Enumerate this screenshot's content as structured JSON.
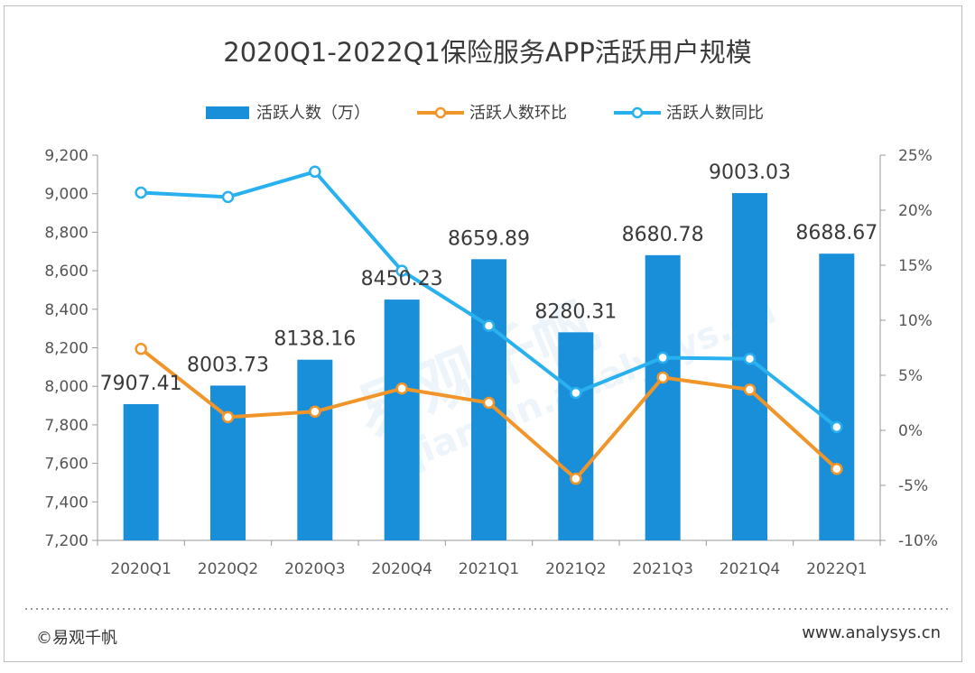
{
  "chart_data": {
    "type": "bar",
    "title": "2020Q1-2022Q1保险服务APP活跃用户规模",
    "categories": [
      "2020Q1",
      "2020Q2",
      "2020Q3",
      "2020Q4",
      "2021Q1",
      "2021Q2",
      "2021Q3",
      "2021Q4",
      "2022Q1"
    ],
    "bar_series": {
      "name": "活跃人数（万）",
      "values": [
        7907.41,
        8003.73,
        8138.16,
        8450.23,
        8659.89,
        8280.31,
        8680.78,
        9003.03,
        8688.67
      ],
      "labels": [
        "7907.41",
        "8003.73",
        "8138.16",
        "8450.23",
        "8659.89",
        "8280.31",
        "8680.78",
        "9003.03",
        "8688.67"
      ],
      "color": "#1a8fd9"
    },
    "line_series": [
      {
        "name": "活跃人数环比",
        "values": [
          7.4,
          1.2,
          1.7,
          3.8,
          2.5,
          -4.4,
          4.8,
          3.7,
          -3.5
        ],
        "color": "#f0952a"
      },
      {
        "name": "活跃人数同比",
        "values": [
          21.6,
          21.2,
          23.5,
          14.5,
          9.5,
          3.4,
          6.6,
          6.5,
          0.3
        ],
        "color": "#29b0ef"
      }
    ],
    "y_left": {
      "ylim": [
        7200,
        9200
      ],
      "ticks": [
        "7,200",
        "7,400",
        "7,600",
        "7,800",
        "8,000",
        "8,200",
        "8,400",
        "8,600",
        "8,800",
        "9,000",
        "9,200"
      ]
    },
    "y_right": {
      "ylim": [
        -10,
        25
      ],
      "ticks": [
        "-10%",
        "-5%",
        "0%",
        "5%",
        "10%",
        "15%",
        "20%",
        "25%"
      ]
    },
    "grid": false,
    "legend_position": "top"
  },
  "footer": {
    "copyright": "©易观千帆",
    "website": "www.analysys.cn"
  },
  "watermark": {
    "brand": "易观千帆",
    "url": "qianfan.analysys.cn"
  }
}
